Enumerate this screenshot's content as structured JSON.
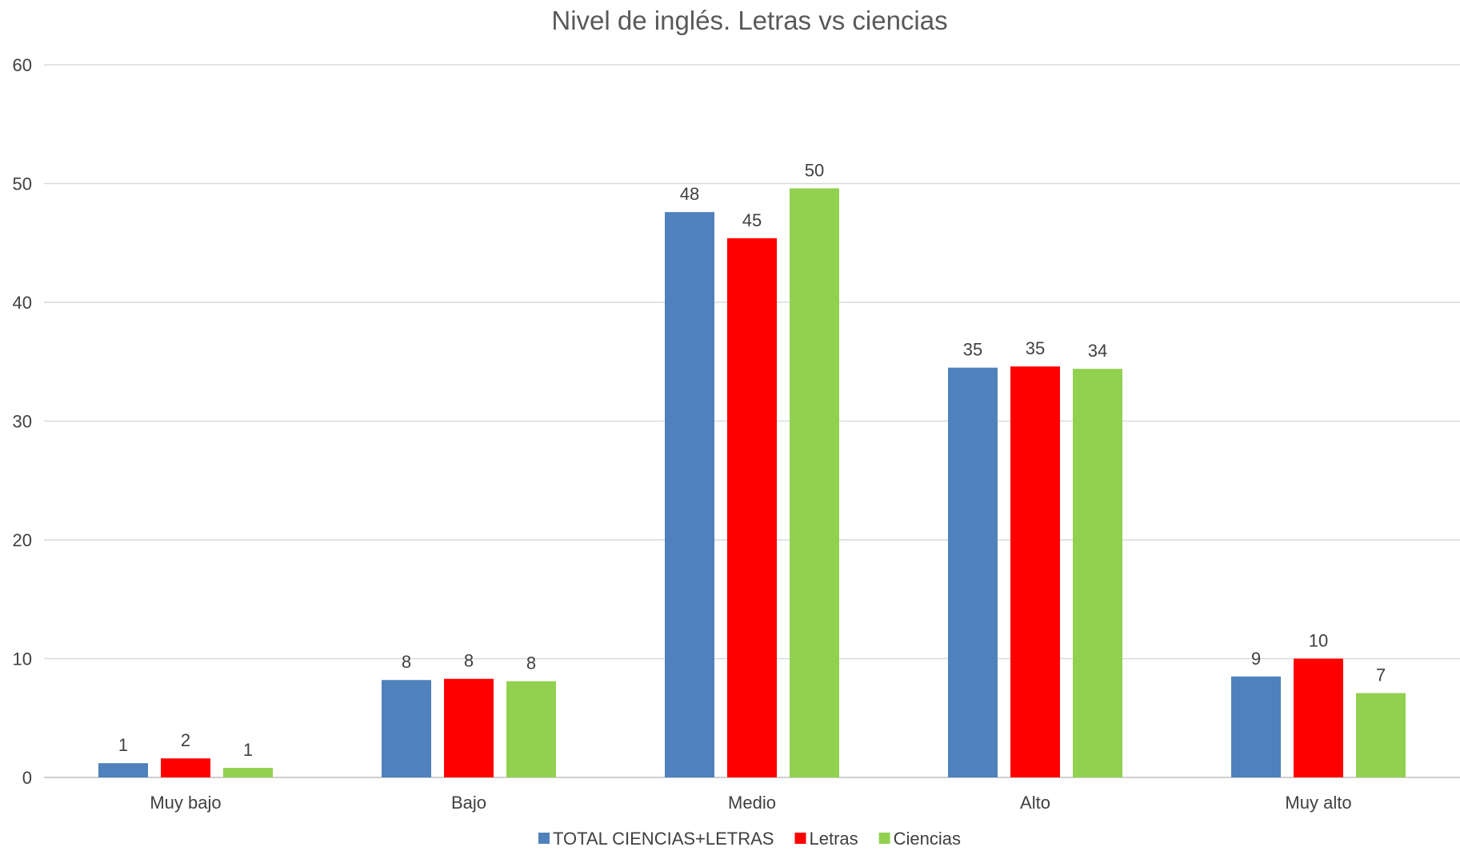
{
  "chart_data": {
    "type": "bar",
    "title": "Nivel de inglés. Letras vs ciencias",
    "xlabel": "",
    "ylabel": "",
    "ylim": [
      0,
      60
    ],
    "yticks": [
      0,
      10,
      20,
      30,
      40,
      50,
      60
    ],
    "grid": true,
    "legend_position": "bottom",
    "categories": [
      "Muy bajo",
      "Bajo",
      "Medio",
      "Alto",
      "Muy alto"
    ],
    "series": [
      {
        "name": "TOTAL CIENCIAS+LETRAS",
        "color": "#4f81bd",
        "values": [
          1.2,
          8.2,
          47.6,
          34.5,
          8.5
        ],
        "labels": [
          "1",
          "8",
          "48",
          "35",
          "9"
        ]
      },
      {
        "name": "Letras",
        "color": "#ff0000",
        "values": [
          1.6,
          8.3,
          45.4,
          34.6,
          10.0
        ],
        "labels": [
          "2",
          "8",
          "45",
          "35",
          "10"
        ]
      },
      {
        "name": "Ciencias",
        "color": "#92d050",
        "values": [
          0.8,
          8.1,
          49.6,
          34.4,
          7.1
        ],
        "labels": [
          "1",
          "8",
          "50",
          "34",
          "7"
        ]
      }
    ]
  }
}
